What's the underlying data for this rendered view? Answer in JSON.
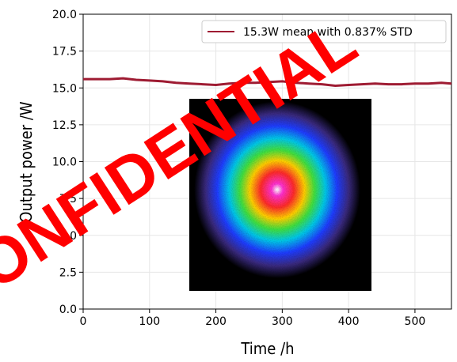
{
  "chart_data": {
    "type": "line",
    "xlabel": "Time /h",
    "ylabel": "Output power /W",
    "xlim": [
      0,
      555
    ],
    "ylim": [
      0,
      20
    ],
    "xticks": [
      0,
      100,
      200,
      300,
      400,
      500
    ],
    "yticks": [
      0.0,
      2.5,
      5.0,
      7.5,
      10.0,
      12.5,
      15.0,
      17.5,
      20.0
    ],
    "xtick_labels": [
      "0",
      "100",
      "200",
      "300",
      "400",
      "500"
    ],
    "ytick_labels": [
      "0.0",
      "2.5",
      "5.0",
      "7.5",
      "10.0",
      "12.5",
      "15.0",
      "17.5",
      "20.0"
    ],
    "grid": true,
    "legend_position": "top-right",
    "series": [
      {
        "name": "15.3W mean with 0.837% STD",
        "color": "#9e1b32",
        "x": [
          0,
          20,
          40,
          60,
          80,
          100,
          120,
          140,
          160,
          180,
          200,
          220,
          240,
          260,
          280,
          300,
          320,
          340,
          360,
          380,
          400,
          420,
          440,
          460,
          480,
          500,
          520,
          540,
          555
        ],
        "y": [
          15.6,
          15.6,
          15.6,
          15.65,
          15.55,
          15.5,
          15.45,
          15.35,
          15.3,
          15.25,
          15.2,
          15.3,
          15.35,
          15.35,
          15.4,
          15.45,
          15.35,
          15.3,
          15.25,
          15.15,
          15.2,
          15.25,
          15.3,
          15.25,
          15.25,
          15.3,
          15.3,
          15.35,
          15.3
        ]
      }
    ],
    "inset": {
      "type": "image",
      "description_icon": "beam-profile-heatmap"
    },
    "watermark": "CONFIDENTIAL"
  }
}
